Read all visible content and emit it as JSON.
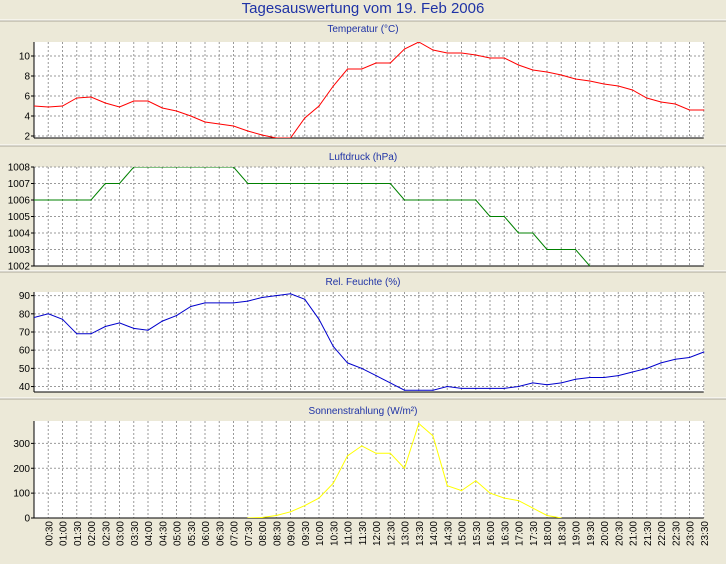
{
  "page_title": "Tagesauswertung vom 19. Feb 2006",
  "time_labels": [
    "00:30",
    "01:00",
    "01:30",
    "02:00",
    "02:30",
    "03:00",
    "03:30",
    "04:00",
    "04:30",
    "05:00",
    "05:30",
    "06:00",
    "06:30",
    "07:00",
    "07:30",
    "08:00",
    "08:30",
    "09:00",
    "09:30",
    "10:00",
    "10:30",
    "11:00",
    "11:30",
    "12:00",
    "12:30",
    "13:00",
    "13:30",
    "14:00",
    "14:30",
    "15:00",
    "15:30",
    "16:00",
    "16:30",
    "17:00",
    "17:30",
    "18:00",
    "18:30",
    "19:00",
    "19:30",
    "20:00",
    "20:30",
    "21:00",
    "21:30",
    "22:00",
    "22:30",
    "23:00",
    "23:30"
  ],
  "colors": {
    "title": "#1f33a6",
    "grid": "#9a9a9a",
    "axis": "#000000"
  },
  "chart_data": [
    {
      "type": "line",
      "title": "Temperatur (°C)",
      "color": "#ff0000",
      "ylim": [
        1.8,
        11.4
      ],
      "yticks": [
        2,
        4,
        6,
        8,
        10
      ],
      "grid": true,
      "x": [
        "00:00",
        "00:30",
        "01:00",
        "01:30",
        "02:00",
        "02:30",
        "03:00",
        "03:30",
        "04:00",
        "04:30",
        "05:00",
        "05:30",
        "06:00",
        "06:30",
        "07:00",
        "07:30",
        "08:00",
        "08:30",
        "09:00",
        "09:30",
        "10:00",
        "10:30",
        "11:00",
        "11:30",
        "12:00",
        "12:30",
        "13:00",
        "13:30",
        "14:00",
        "14:30",
        "15:00",
        "15:30",
        "16:00",
        "16:30",
        "17:00",
        "17:30",
        "18:00",
        "18:30",
        "19:00",
        "19:30",
        "20:00",
        "20:30",
        "21:00",
        "21:30",
        "22:00",
        "22:30",
        "23:00",
        "23:30"
      ],
      "values": [
        5.0,
        4.9,
        5.0,
        5.8,
        5.9,
        5.3,
        4.9,
        5.5,
        5.5,
        4.8,
        4.5,
        4.0,
        3.4,
        3.2,
        3.0,
        2.5,
        2.1,
        1.8,
        1.8,
        3.8,
        5.0,
        7.0,
        8.7,
        8.7,
        9.3,
        9.3,
        10.7,
        11.4,
        10.6,
        10.3,
        10.3,
        10.1,
        9.8,
        9.8,
        9.1,
        8.6,
        8.4,
        8.1,
        7.7,
        7.5,
        7.2,
        7.0,
        6.6,
        5.8,
        5.4,
        5.2,
        4.6,
        4.6
      ]
    },
    {
      "type": "line",
      "title": "Luftdruck (hPa)",
      "color": "#008000",
      "ylim": [
        1002,
        1008
      ],
      "yticks": [
        1002,
        1003,
        1004,
        1005,
        1006,
        1007,
        1008
      ],
      "grid": true,
      "x": [
        "00:00",
        "00:30",
        "01:00",
        "01:30",
        "02:00",
        "02:30",
        "03:00",
        "03:30",
        "04:00",
        "04:30",
        "05:00",
        "05:30",
        "06:00",
        "06:30",
        "07:00",
        "07:30",
        "08:00",
        "08:30",
        "09:00",
        "09:30",
        "10:00",
        "10:30",
        "11:00",
        "11:30",
        "12:00",
        "12:30",
        "13:00",
        "13:30",
        "14:00",
        "14:30",
        "15:00",
        "15:30",
        "16:00",
        "16:30",
        "17:00",
        "17:30",
        "18:00",
        "18:30",
        "19:00",
        "19:30"
      ],
      "values": [
        1006,
        1006,
        1006,
        1006,
        1006,
        1007,
        1007,
        1008,
        1008,
        1008,
        1008,
        1008,
        1008,
        1008,
        1008,
        1007,
        1007,
        1007,
        1007,
        1007,
        1007,
        1007,
        1007,
        1007,
        1007,
        1007,
        1006,
        1006,
        1006,
        1006,
        1006,
        1006,
        1005,
        1005,
        1004,
        1004,
        1003,
        1003,
        1003,
        1002
      ]
    },
    {
      "type": "line",
      "title": "Rel. Feuchte (%)",
      "color": "#0000cc",
      "ylim": [
        37,
        92
      ],
      "yticks": [
        40,
        50,
        60,
        70,
        80,
        90
      ],
      "grid": true,
      "x": [
        "00:00",
        "00:30",
        "01:00",
        "01:30",
        "02:00",
        "02:30",
        "03:00",
        "03:30",
        "04:00",
        "04:30",
        "05:00",
        "05:30",
        "06:00",
        "06:30",
        "07:00",
        "07:30",
        "08:00",
        "08:30",
        "09:00",
        "09:30",
        "10:00",
        "10:30",
        "11:00",
        "11:30",
        "12:00",
        "12:30",
        "13:00",
        "13:30",
        "14:00",
        "14:30",
        "15:00",
        "15:30",
        "16:00",
        "16:30",
        "17:00",
        "17:30",
        "18:00",
        "18:30",
        "19:00",
        "19:30",
        "20:00",
        "20:30",
        "21:00",
        "21:30",
        "22:00",
        "22:30",
        "23:00",
        "23:30"
      ],
      "values": [
        78,
        80,
        77,
        69,
        69,
        73,
        75,
        72,
        71,
        76,
        79,
        84,
        86,
        86,
        86,
        87,
        89,
        90,
        91,
        88,
        77,
        62,
        53,
        50,
        46,
        42,
        38,
        38,
        38,
        40,
        39,
        39,
        39,
        39,
        40,
        42,
        41,
        42,
        44,
        45,
        45,
        46,
        48,
        50,
        53,
        55,
        56,
        59
      ]
    },
    {
      "type": "line",
      "title": "Sonnenstrahlung (W/m²)",
      "color": "#ffff00",
      "ylim": [
        0,
        390
      ],
      "yticks": [
        0,
        100,
        200,
        300
      ],
      "grid": true,
      "x": [
        "07:30",
        "08:00",
        "08:30",
        "09:00",
        "09:30",
        "10:00",
        "10:30",
        "11:00",
        "11:30",
        "12:00",
        "12:30",
        "13:00",
        "13:30",
        "14:00",
        "14:30",
        "15:00",
        "15:30",
        "16:00",
        "16:30",
        "17:00",
        "17:30",
        "18:00",
        "18:30"
      ],
      "values": [
        0,
        2,
        10,
        25,
        50,
        80,
        140,
        250,
        290,
        260,
        260,
        200,
        380,
        330,
        130,
        110,
        150,
        100,
        80,
        70,
        40,
        10,
        0
      ]
    }
  ]
}
